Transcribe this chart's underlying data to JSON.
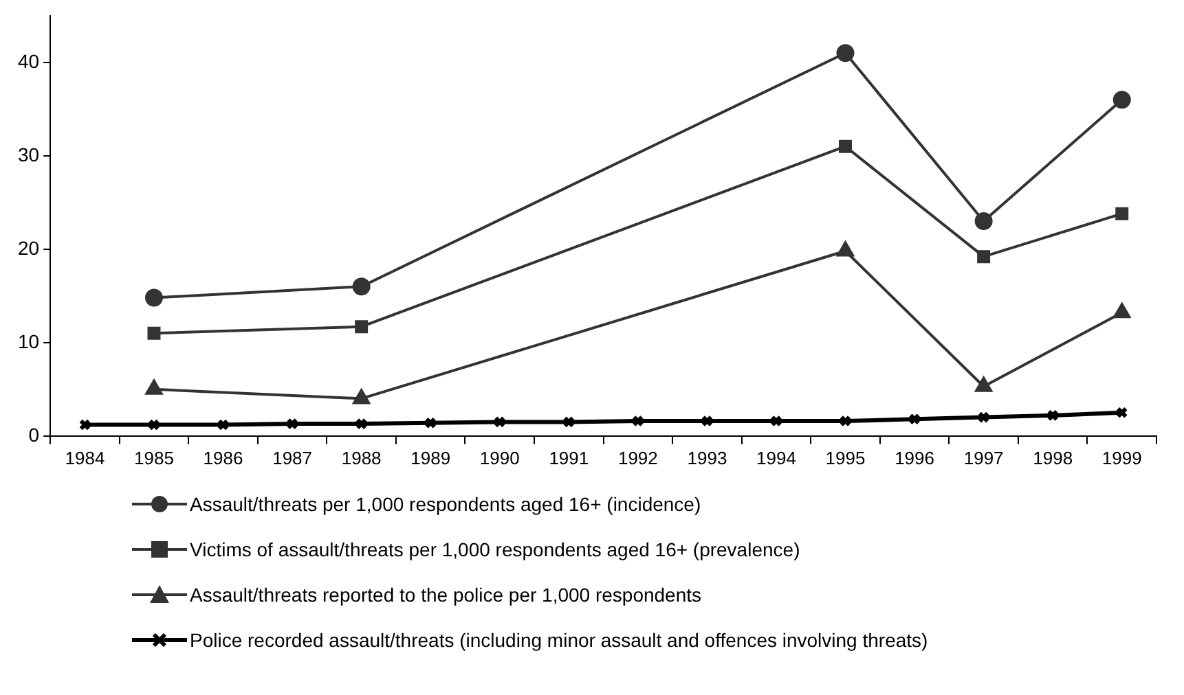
{
  "chart_data": {
    "type": "line",
    "categories": [
      "1984",
      "1985",
      "1986",
      "1987",
      "1988",
      "1989",
      "1990",
      "1991",
      "1992",
      "1993",
      "1994",
      "1995",
      "1996",
      "1997",
      "1998",
      "1999"
    ],
    "series": [
      {
        "name": "Assault/threats per 1,000 respondents aged 16+ (incidence)",
        "color": "#333333",
        "marker": "circle",
        "values": [
          null,
          14.8,
          null,
          null,
          16,
          null,
          null,
          null,
          null,
          null,
          null,
          41,
          null,
          23,
          null,
          36
        ]
      },
      {
        "name": "Victims of assault/threats per 1,000 respondents aged 16+ (prevalence)",
        "color": "#333333",
        "marker": "square",
        "values": [
          null,
          11,
          null,
          null,
          11.7,
          null,
          null,
          null,
          null,
          null,
          null,
          31,
          null,
          19.2,
          null,
          23.8
        ]
      },
      {
        "name": "Assault/threats reported to the police per 1,000 respondents",
        "color": "#333333",
        "marker": "triangle",
        "values": [
          null,
          5,
          null,
          null,
          4,
          null,
          null,
          null,
          null,
          null,
          null,
          19.8,
          null,
          5.3,
          null,
          13.2
        ]
      },
      {
        "name": "Police recorded assault/threats (including minor assault and offences involving threats)",
        "color": "#000000",
        "marker": "cross",
        "values": [
          1.2,
          1.2,
          1.2,
          1.3,
          1.3,
          1.4,
          1.5,
          1.5,
          1.6,
          1.6,
          1.6,
          1.6,
          1.8,
          2.0,
          2.2,
          2.5
        ]
      }
    ],
    "ylim": [
      0,
      45
    ],
    "yticks": [
      0,
      10,
      20,
      30,
      40
    ],
    "grid": false,
    "legend": "bottom",
    "line_style": "solid"
  }
}
